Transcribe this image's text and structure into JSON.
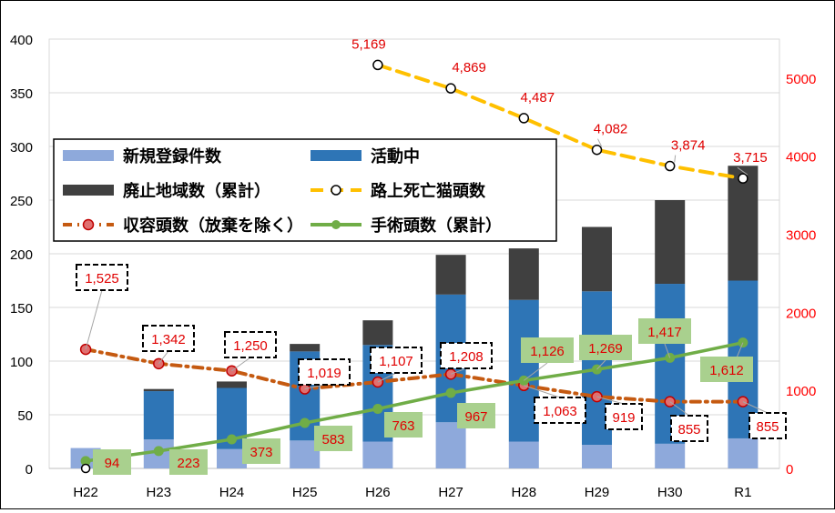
{
  "chart_data": {
    "type": "bar",
    "categories": [
      "H22",
      "H23",
      "H24",
      "H25",
      "H26",
      "H27",
      "H28",
      "H29",
      "H30",
      "R1"
    ],
    "y_left": {
      "min": 0,
      "max": 400,
      "ticks": [
        "0",
        "50",
        "100",
        "150",
        "200",
        "250",
        "300",
        "350",
        "400"
      ]
    },
    "y_right": {
      "min": 0,
      "max": 5500,
      "ticks": [
        "0",
        "1000",
        "2000",
        "3000",
        "4000",
        "5000"
      ]
    },
    "stacked_bars": [
      {
        "name": "新規登録件数",
        "color": "#8EA9DB",
        "values": [
          19,
          27,
          18,
          26,
          25,
          43,
          25,
          22,
          23,
          28
        ]
      },
      {
        "name": "活動中",
        "color": "#2E75B6",
        "values": [
          0,
          45,
          57,
          83,
          90,
          119,
          132,
          143,
          149,
          147
        ]
      },
      {
        "name": "廃止地域数（累計）",
        "color": "#404040",
        "values": [
          0,
          2,
          6,
          7,
          23,
          37,
          48,
          60,
          78,
          107
        ]
      }
    ],
    "lines": [
      {
        "name": "路上死亡猫頭数",
        "axis": "right",
        "color": "#FFC000",
        "values": [
          null,
          null,
          null,
          null,
          5169,
          4869,
          4487,
          4082,
          3874,
          3715
        ],
        "labels": [
          "",
          "",
          "",
          "",
          "5,169",
          "4,869",
          "4,487",
          "4,082",
          "3,874",
          "3,715"
        ]
      },
      {
        "name": "収容頭数（放棄を除く）",
        "axis": "right",
        "color": "#C55A11",
        "values": [
          1525,
          1342,
          1250,
          1019,
          1107,
          1208,
          1063,
          919,
          855,
          855
        ],
        "labels": [
          "1,525",
          "1,342",
          "1,250",
          "1,019",
          "1,107",
          "1,208",
          "1,063",
          "919",
          "855",
          "855"
        ]
      },
      {
        "name": "手術頭数（累計）",
        "axis": "right",
        "color": "#70AD47",
        "values": [
          94,
          223,
          373,
          583,
          763,
          967,
          1126,
          1269,
          1417,
          1612
        ],
        "labels": [
          "94",
          "223",
          "373",
          "583",
          "763",
          "967",
          "1,126",
          "1,269",
          "1,417",
          "1,612"
        ]
      }
    ],
    "legend_position": "left",
    "label_color": "#E00000",
    "surgery_label_bg": "#A9D08E"
  }
}
